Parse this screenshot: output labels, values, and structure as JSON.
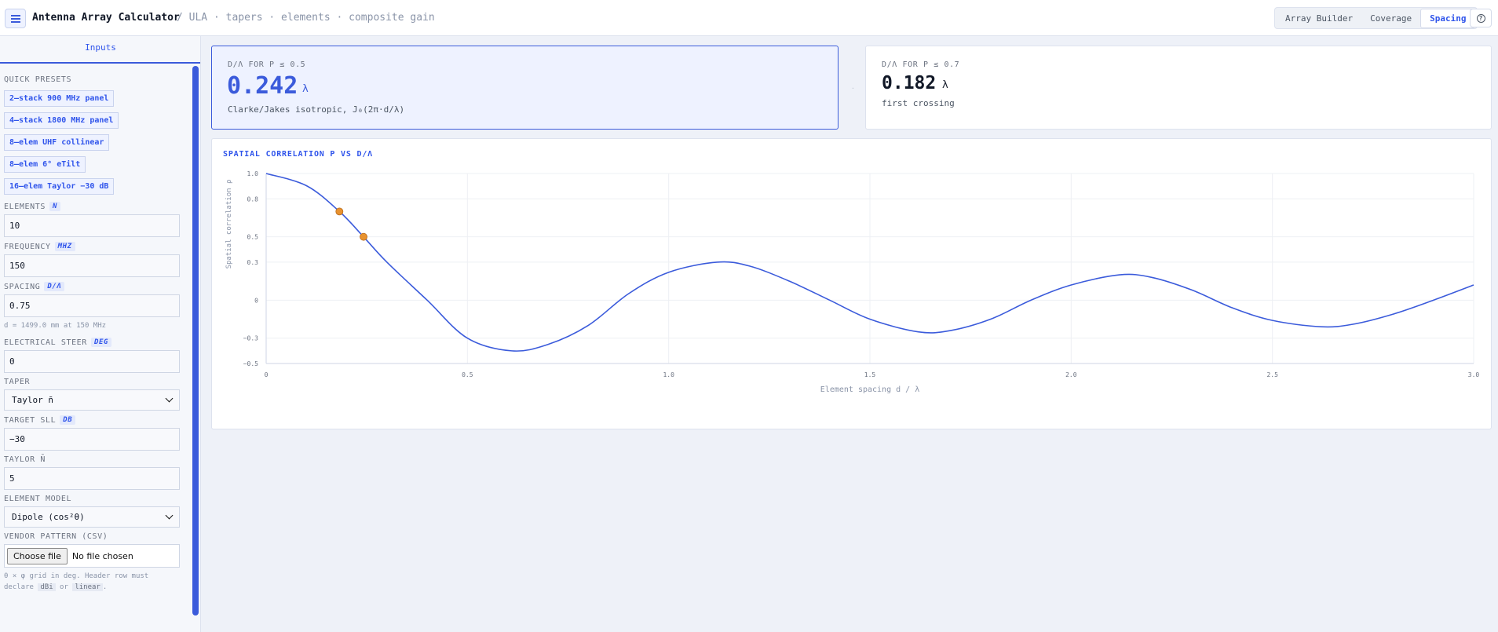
{
  "header": {
    "app_title": "Antenna Array Calculator",
    "breadcrumb": "/ ULA · tapers · elements · composite gain",
    "tabs": [
      {
        "label": "Array Builder",
        "active": false
      },
      {
        "label": "Coverage",
        "active": false
      },
      {
        "label": "Spacing",
        "active": true
      }
    ],
    "help_icon": "?"
  },
  "sidebar": {
    "tab_label": "Inputs",
    "presets_label": "QUICK PRESETS",
    "presets": [
      "2–stack 900 MHz panel",
      "4–stack 1800 MHz panel",
      "8–elem UHF collinear",
      "8–elem 6° eTilt",
      "16–elem Taylor −30 dB"
    ],
    "elements": {
      "label": "ELEMENTS",
      "unit": "N",
      "value": "10"
    },
    "frequency": {
      "label": "FREQUENCY",
      "unit": "MHZ",
      "value": "150"
    },
    "spacing": {
      "label": "SPACING",
      "unit": "D/Λ",
      "value": "0.75",
      "hint": "d = 1499.0 mm at 150 MHz"
    },
    "steer": {
      "label": "ELECTRICAL STEER",
      "unit": "DEG",
      "value": "0"
    },
    "taper": {
      "label": "TAPER",
      "value": "Taylor n̄"
    },
    "target_sll": {
      "label": "TARGET SLL",
      "unit": "DB",
      "value": "−30"
    },
    "taylor_nbar": {
      "label": "TAYLOR N̄",
      "value": "5"
    },
    "element_model": {
      "label": "ELEMENT MODEL",
      "value": "Dipole (cos²θ)"
    },
    "vendor_pattern": {
      "label": "VENDOR PATTERN (CSV)",
      "button": "Choose file",
      "status": "No file chosen",
      "hint_a": "θ × φ grid in deg. Header row must declare",
      "code1": "dBi",
      "hint_b": "or",
      "code2": "linear",
      "hint_c": "."
    }
  },
  "kpi": {
    "card1": {
      "label": "D/Λ FOR Ρ ≤ 0.5",
      "value": "0.242",
      "unit": "λ",
      "sub": "Clarke/Jakes isotropic, J₀(2π·d/λ)"
    },
    "card2": {
      "label": "D/Λ FOR Ρ ≤ 0.7",
      "value": "0.182",
      "unit": "λ",
      "sub": "first crossing"
    },
    "separator": "·"
  },
  "chart": {
    "title": "SPATIAL CORRELATION Ρ VS D/Λ",
    "xlabel": "Element spacing  d / λ",
    "ylabel": "Spatial correlation  ρ",
    "line_color": "#3b5bdb",
    "marker_color": "#e8922f"
  },
  "chart_data": {
    "type": "line",
    "title": "SPATIAL CORRELATION Ρ VS D/Λ",
    "xlabel": "Element spacing  d / λ",
    "ylabel": "Spatial correlation  ρ",
    "xlim": [
      0,
      3.0
    ],
    "ylim": [
      -0.5,
      1.0
    ],
    "x_ticks": [
      0,
      0.5,
      1.0,
      1.5,
      2.0,
      2.5,
      3.0
    ],
    "x_tick_labels": [
      "0",
      "0.5",
      "1.0",
      "1.5",
      "2.0",
      "2.5",
      "3.0"
    ],
    "y_ticks": [
      1.0,
      0.8,
      0.5,
      0.3,
      0,
      -0.3,
      -0.5
    ],
    "y_tick_labels": [
      "1.0",
      "0.8",
      "0.5",
      "0.3",
      "0",
      "−0.3",
      "−0.5"
    ],
    "grid": true,
    "series": [
      {
        "x": [
          0,
          0.1,
          0.182,
          0.242,
          0.3,
          0.4,
          0.5,
          0.61,
          0.7,
          0.8,
          0.9,
          1.0,
          1.12,
          1.2,
          1.3,
          1.4,
          1.5,
          1.62,
          1.7,
          1.8,
          1.9,
          2.0,
          2.12,
          2.2,
          2.3,
          2.4,
          2.5,
          2.62,
          2.7,
          2.8,
          2.9,
          3.0
        ],
        "y": [
          1.0,
          0.904,
          0.7,
          0.5,
          0.3,
          0.0,
          -0.3,
          -0.4,
          -0.35,
          -0.2,
          0.05,
          0.22,
          0.3,
          0.27,
          0.15,
          0.0,
          -0.15,
          -0.25,
          -0.24,
          -0.15,
          0.0,
          0.12,
          0.2,
          0.18,
          0.08,
          -0.06,
          -0.16,
          -0.21,
          -0.19,
          -0.11,
          0.0,
          0.12
        ]
      }
    ],
    "markers": [
      {
        "x": 0.182,
        "y": 0.7
      },
      {
        "x": 0.242,
        "y": 0.5
      }
    ]
  }
}
